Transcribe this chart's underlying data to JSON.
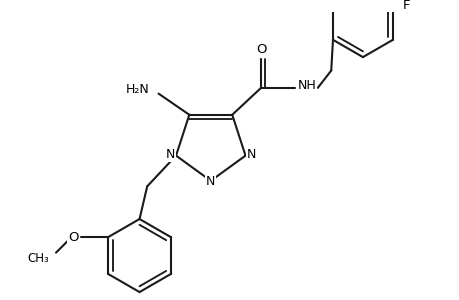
{
  "background_color": "#ffffff",
  "line_color": "#1a1a1a",
  "line_width": 1.5,
  "figsize": [
    4.6,
    3.0
  ],
  "dpi": 100,
  "xlim": [
    0,
    460
  ],
  "ylim": [
    0,
    300
  ]
}
